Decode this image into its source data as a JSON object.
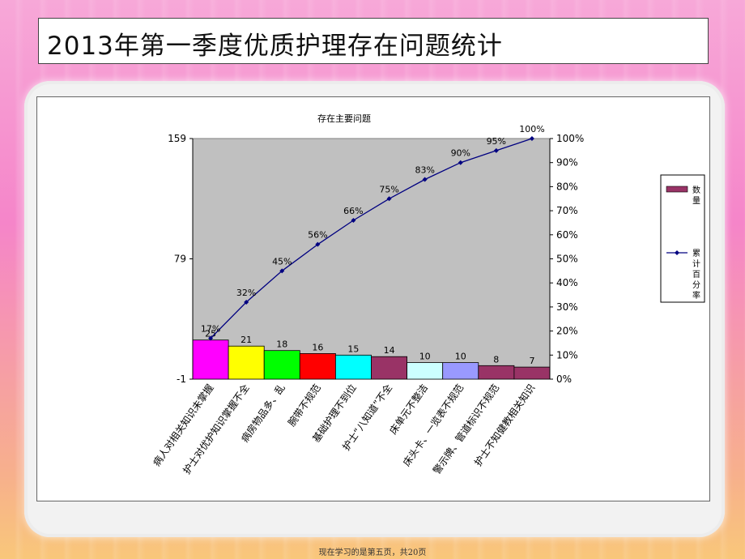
{
  "slide": {
    "title": "2013年第一季度优质护理存在问题统计",
    "footer": "现在学习的是第五页，共20页"
  },
  "chart_data": {
    "type": "bar",
    "title": "存在主要问题",
    "categories": [
      "病人对相关知识未掌握",
      "护士对优护知识掌握不全",
      "病房物品多、乱",
      "腕带不规范",
      "基础护理不到位",
      "护士“八知道”不全",
      "床单元不整洁",
      "床头卡、一览表不规范",
      "警示牌、管道标识不规范",
      "护士不知健教相关知识"
    ],
    "series": [
      {
        "name": "数量",
        "type": "bar",
        "values": [
          25,
          21,
          18,
          16,
          15,
          14,
          10,
          10,
          8,
          7
        ],
        "colors": [
          "#ff00ff",
          "#ffff00",
          "#00ff00",
          "#ff0000",
          "#00ffff",
          "#993366",
          "#ccffff",
          "#9999ff",
          "#993366",
          "#993366"
        ]
      },
      {
        "name": "累计百分率",
        "type": "line",
        "values": [
          17,
          32,
          45,
          56,
          66,
          75,
          83,
          90,
          95,
          100
        ],
        "labels": [
          "17%",
          "32%",
          "45%",
          "56%",
          "66%",
          "75%",
          "83%",
          "90%",
          "95%",
          "100%"
        ],
        "color": "#000080"
      }
    ],
    "y_left": {
      "ticks": [
        "159",
        "79",
        "-1"
      ],
      "ylim": [
        -1,
        159
      ]
    },
    "y_right": {
      "ticks": [
        "100%",
        "90%",
        "80%",
        "70%",
        "60%",
        "50%",
        "40%",
        "30%",
        "20%",
        "10%",
        "0%"
      ],
      "ylim": [
        0,
        100
      ]
    },
    "legend": {
      "placement": "right",
      "items": [
        "数量",
        "累计百分率"
      ]
    },
    "plot_bg": "#c0c0c0",
    "grid": false
  }
}
